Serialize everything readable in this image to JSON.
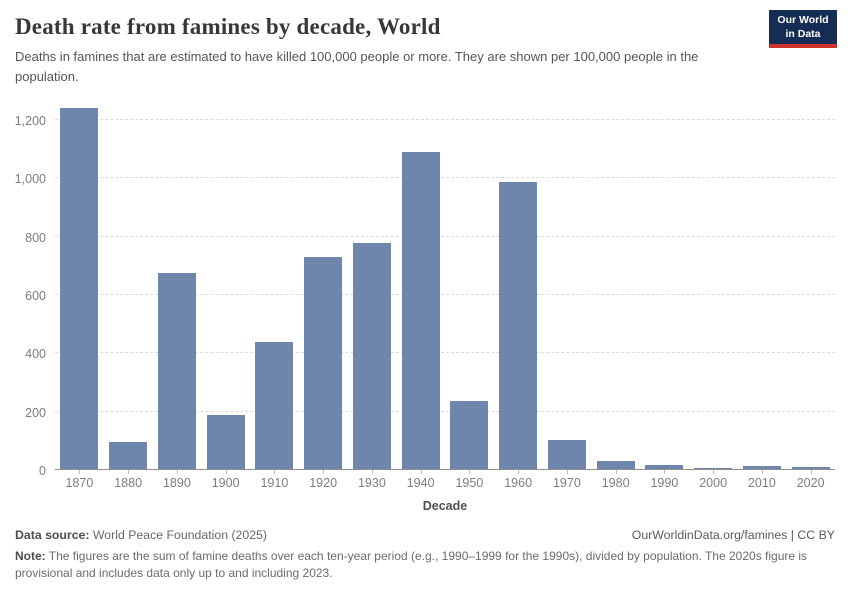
{
  "header": {
    "title": "Death rate from famines by decade, World",
    "subtitle": "Deaths in famines that are estimated to have killed 100,000 people or more. They are shown per 100,000 people in the population.",
    "logo": {
      "line1": "Our World",
      "line2": "in Data"
    }
  },
  "chart_data": {
    "type": "bar",
    "title": "Death rate from famines by decade, World",
    "xlabel": "Decade",
    "ylabel": "",
    "categories": [
      "1870",
      "1880",
      "1890",
      "1900",
      "1910",
      "1920",
      "1930",
      "1940",
      "1950",
      "1960",
      "1970",
      "1980",
      "1990",
      "2000",
      "2010",
      "2020"
    ],
    "values": [
      1243,
      95,
      675,
      190,
      440,
      729,
      779,
      1090,
      235,
      989,
      104,
      30,
      17,
      8,
      14,
      11
    ],
    "ylim": [
      0,
      1255
    ],
    "yticks": [
      0,
      200,
      400,
      600,
      800,
      1000,
      1200
    ],
    "ytick_labels": [
      "0",
      "200",
      "400",
      "600",
      "800",
      "1,000",
      "1,200"
    ],
    "grid": "horizontal-dashed",
    "legend": "none",
    "bar_color": "#6e86ac"
  },
  "footer": {
    "datasource_label": "Data source:",
    "datasource_text": " World Peace Foundation (2025)",
    "attribution": "OurWorldinData.org/famines | CC BY",
    "note_label": "Note:",
    "note_text": " The figures are the sum of famine deaths over each ten-year period (e.g., 1990–1999 for the 1990s), divided by population. The 2020s figure is provisional and includes data only up to and including 2023."
  },
  "colors": {
    "bar": "#6e86ac",
    "logo_navy": "#152d54",
    "logo_red": "#cf342b",
    "gridline": "#dcdcdc",
    "axis_line": "#8f8f8f",
    "title_text": "#383838",
    "tick_text": "#7d7d7d"
  }
}
